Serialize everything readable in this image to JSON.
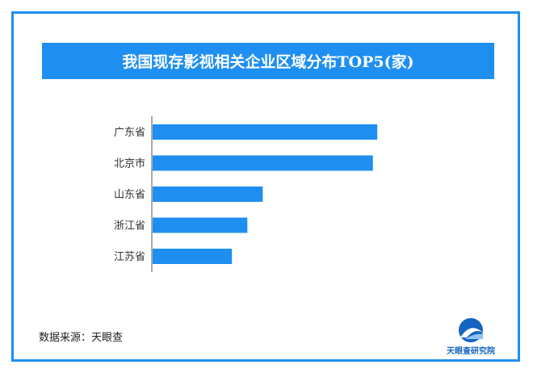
{
  "colors": {
    "accent": "#1E8FF0",
    "bar": "#1E8FF0",
    "axis": "#555555",
    "label": "#333333"
  },
  "title": "我国现存影视相关企业区域分布TOP5(家)",
  "source": "数据来源：天眼查",
  "logo": {
    "text": "天眼查研究院",
    "icon": "tianyancha-logo-icon"
  },
  "chart_data": {
    "type": "bar",
    "orientation": "horizontal",
    "title": "我国现存影视相关企业区域分布TOP5(家)",
    "categories": [
      "广东省",
      "北京市",
      "山东省",
      "浙江省",
      "江苏省"
    ],
    "values": [
      102,
      100,
      50,
      43,
      36
    ],
    "xlim": [
      0,
      110
    ],
    "grid": false,
    "value_labels": false
  }
}
